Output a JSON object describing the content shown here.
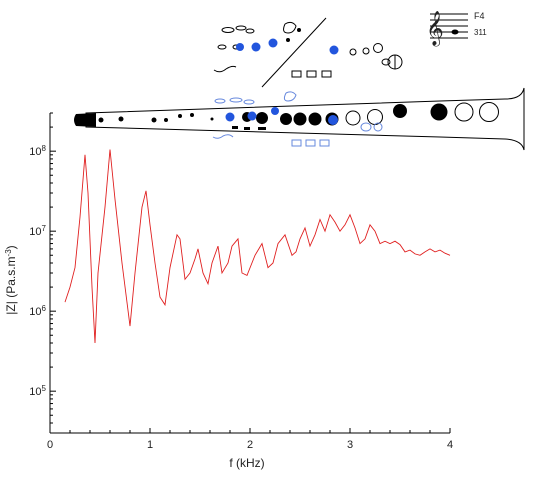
{
  "chart_data": {
    "type": "line",
    "xlabel": "f (kHz)",
    "ylabel_main": "|Z| (Pa.s.m",
    "ylabel_sup": "-3",
    "ylabel_close": ")",
    "x_ticks": [
      0,
      1,
      2,
      3,
      4
    ],
    "x_tick_labels": [
      "0",
      "1",
      "2",
      "3",
      "4"
    ],
    "y_scale": "log",
    "y_ticks": [
      100000,
      1000000,
      10000000,
      100000000
    ],
    "y_tick_bases": [
      "10",
      "10",
      "10",
      "10"
    ],
    "y_tick_exps": [
      "5",
      "6",
      "7",
      "8"
    ],
    "xlim": [
      0,
      4
    ],
    "ylim": [
      30000,
      300000000
    ],
    "grid": false,
    "line_color": "#e02020",
    "series": [
      {
        "points": [
          [
            0.15,
            1300000.0
          ],
          [
            0.2,
            2000000.0
          ],
          [
            0.25,
            3500000.0
          ],
          [
            0.3,
            15000000.0
          ],
          [
            0.35,
            90000000.0
          ],
          [
            0.38,
            30000000.0
          ],
          [
            0.42,
            2000000.0
          ],
          [
            0.45,
            400000.0
          ],
          [
            0.48,
            3000000.0
          ],
          [
            0.55,
            20000000.0
          ],
          [
            0.6,
            105000000.0
          ],
          [
            0.65,
            25000000.0
          ],
          [
            0.72,
            4000000.0
          ],
          [
            0.8,
            650000.0
          ],
          [
            0.85,
            3000000.0
          ],
          [
            0.92,
            20000000.0
          ],
          [
            0.96,
            32000000.0
          ],
          [
            1.0,
            12000000.0
          ],
          [
            1.05,
            4000000.0
          ],
          [
            1.1,
            1500000.0
          ],
          [
            1.15,
            1200000.0
          ],
          [
            1.2,
            3500000.0
          ],
          [
            1.27,
            9000000.0
          ],
          [
            1.3,
            8000000.0
          ],
          [
            1.35,
            2500000.0
          ],
          [
            1.4,
            3000000.0
          ],
          [
            1.45,
            4500000.0
          ],
          [
            1.48,
            6000000.0
          ],
          [
            1.53,
            3000000.0
          ],
          [
            1.58,
            2200000.0
          ],
          [
            1.62,
            4000000.0
          ],
          [
            1.68,
            6500000.0
          ],
          [
            1.72,
            3000000.0
          ],
          [
            1.78,
            4000000.0
          ],
          [
            1.82,
            6500000.0
          ],
          [
            1.88,
            8000000.0
          ],
          [
            1.92,
            3000000.0
          ],
          [
            1.97,
            2800000.0
          ],
          [
            2.05,
            5000000.0
          ],
          [
            2.12,
            7000000.0
          ],
          [
            2.18,
            3500000.0
          ],
          [
            2.23,
            4000000.0
          ],
          [
            2.28,
            7000000.0
          ],
          [
            2.35,
            9000000.0
          ],
          [
            2.42,
            5000000.0
          ],
          [
            2.46,
            5500000.0
          ],
          [
            2.5,
            8000000.0
          ],
          [
            2.55,
            11000000.0
          ],
          [
            2.6,
            6500000.0
          ],
          [
            2.65,
            9000000.0
          ],
          [
            2.7,
            14000000.0
          ],
          [
            2.75,
            10000000.0
          ],
          [
            2.8,
            16000000.0
          ],
          [
            2.85,
            13000000.0
          ],
          [
            2.9,
            10000000.0
          ],
          [
            2.95,
            12000000.0
          ],
          [
            3.0,
            16000000.0
          ],
          [
            3.05,
            11000000.0
          ],
          [
            3.1,
            7000000.0
          ],
          [
            3.15,
            8000000.0
          ],
          [
            3.2,
            12000000.0
          ],
          [
            3.25,
            10000000.0
          ],
          [
            3.3,
            7000000.0
          ],
          [
            3.35,
            7500000.0
          ],
          [
            3.4,
            7000000.0
          ],
          [
            3.45,
            7500000.0
          ],
          [
            3.5,
            6800000.0
          ],
          [
            3.55,
            5500000.0
          ],
          [
            3.6,
            5800000.0
          ],
          [
            3.65,
            5200000.0
          ],
          [
            3.7,
            5000000.0
          ],
          [
            3.75,
            5500000.0
          ],
          [
            3.8,
            6000000.0
          ],
          [
            3.85,
            5500000.0
          ],
          [
            3.9,
            5800000.0
          ],
          [
            3.95,
            5300000.0
          ],
          [
            4.0,
            5000000.0
          ]
        ]
      }
    ]
  },
  "annotation": {
    "note_name": "F4",
    "note_fingering": "311",
    "fingering_color": "#2255dd"
  }
}
